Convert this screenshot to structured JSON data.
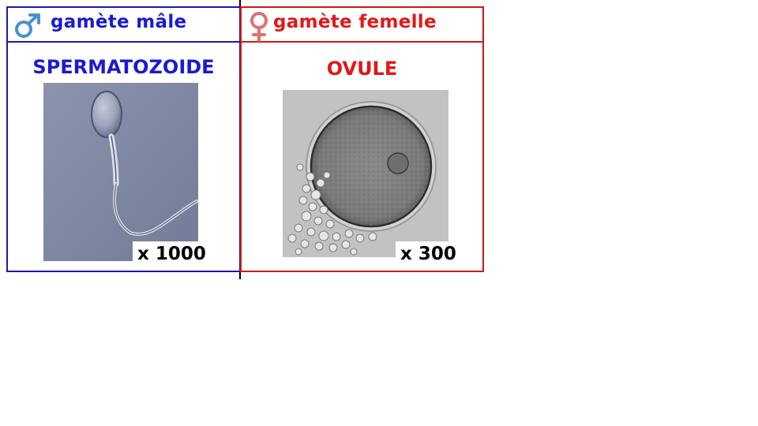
{
  "male": {
    "header": "gamète mâle",
    "title": "SPERMATOZOIDE",
    "magnification": "x 1000",
    "symbol_icon": "mars-symbol-icon",
    "color": "#1a1ad0"
  },
  "female": {
    "header": "gamète femelle",
    "title": "OVULE",
    "magnification": "x 300",
    "symbol_icon": "venus-symbol-icon",
    "color": "#e01818"
  }
}
